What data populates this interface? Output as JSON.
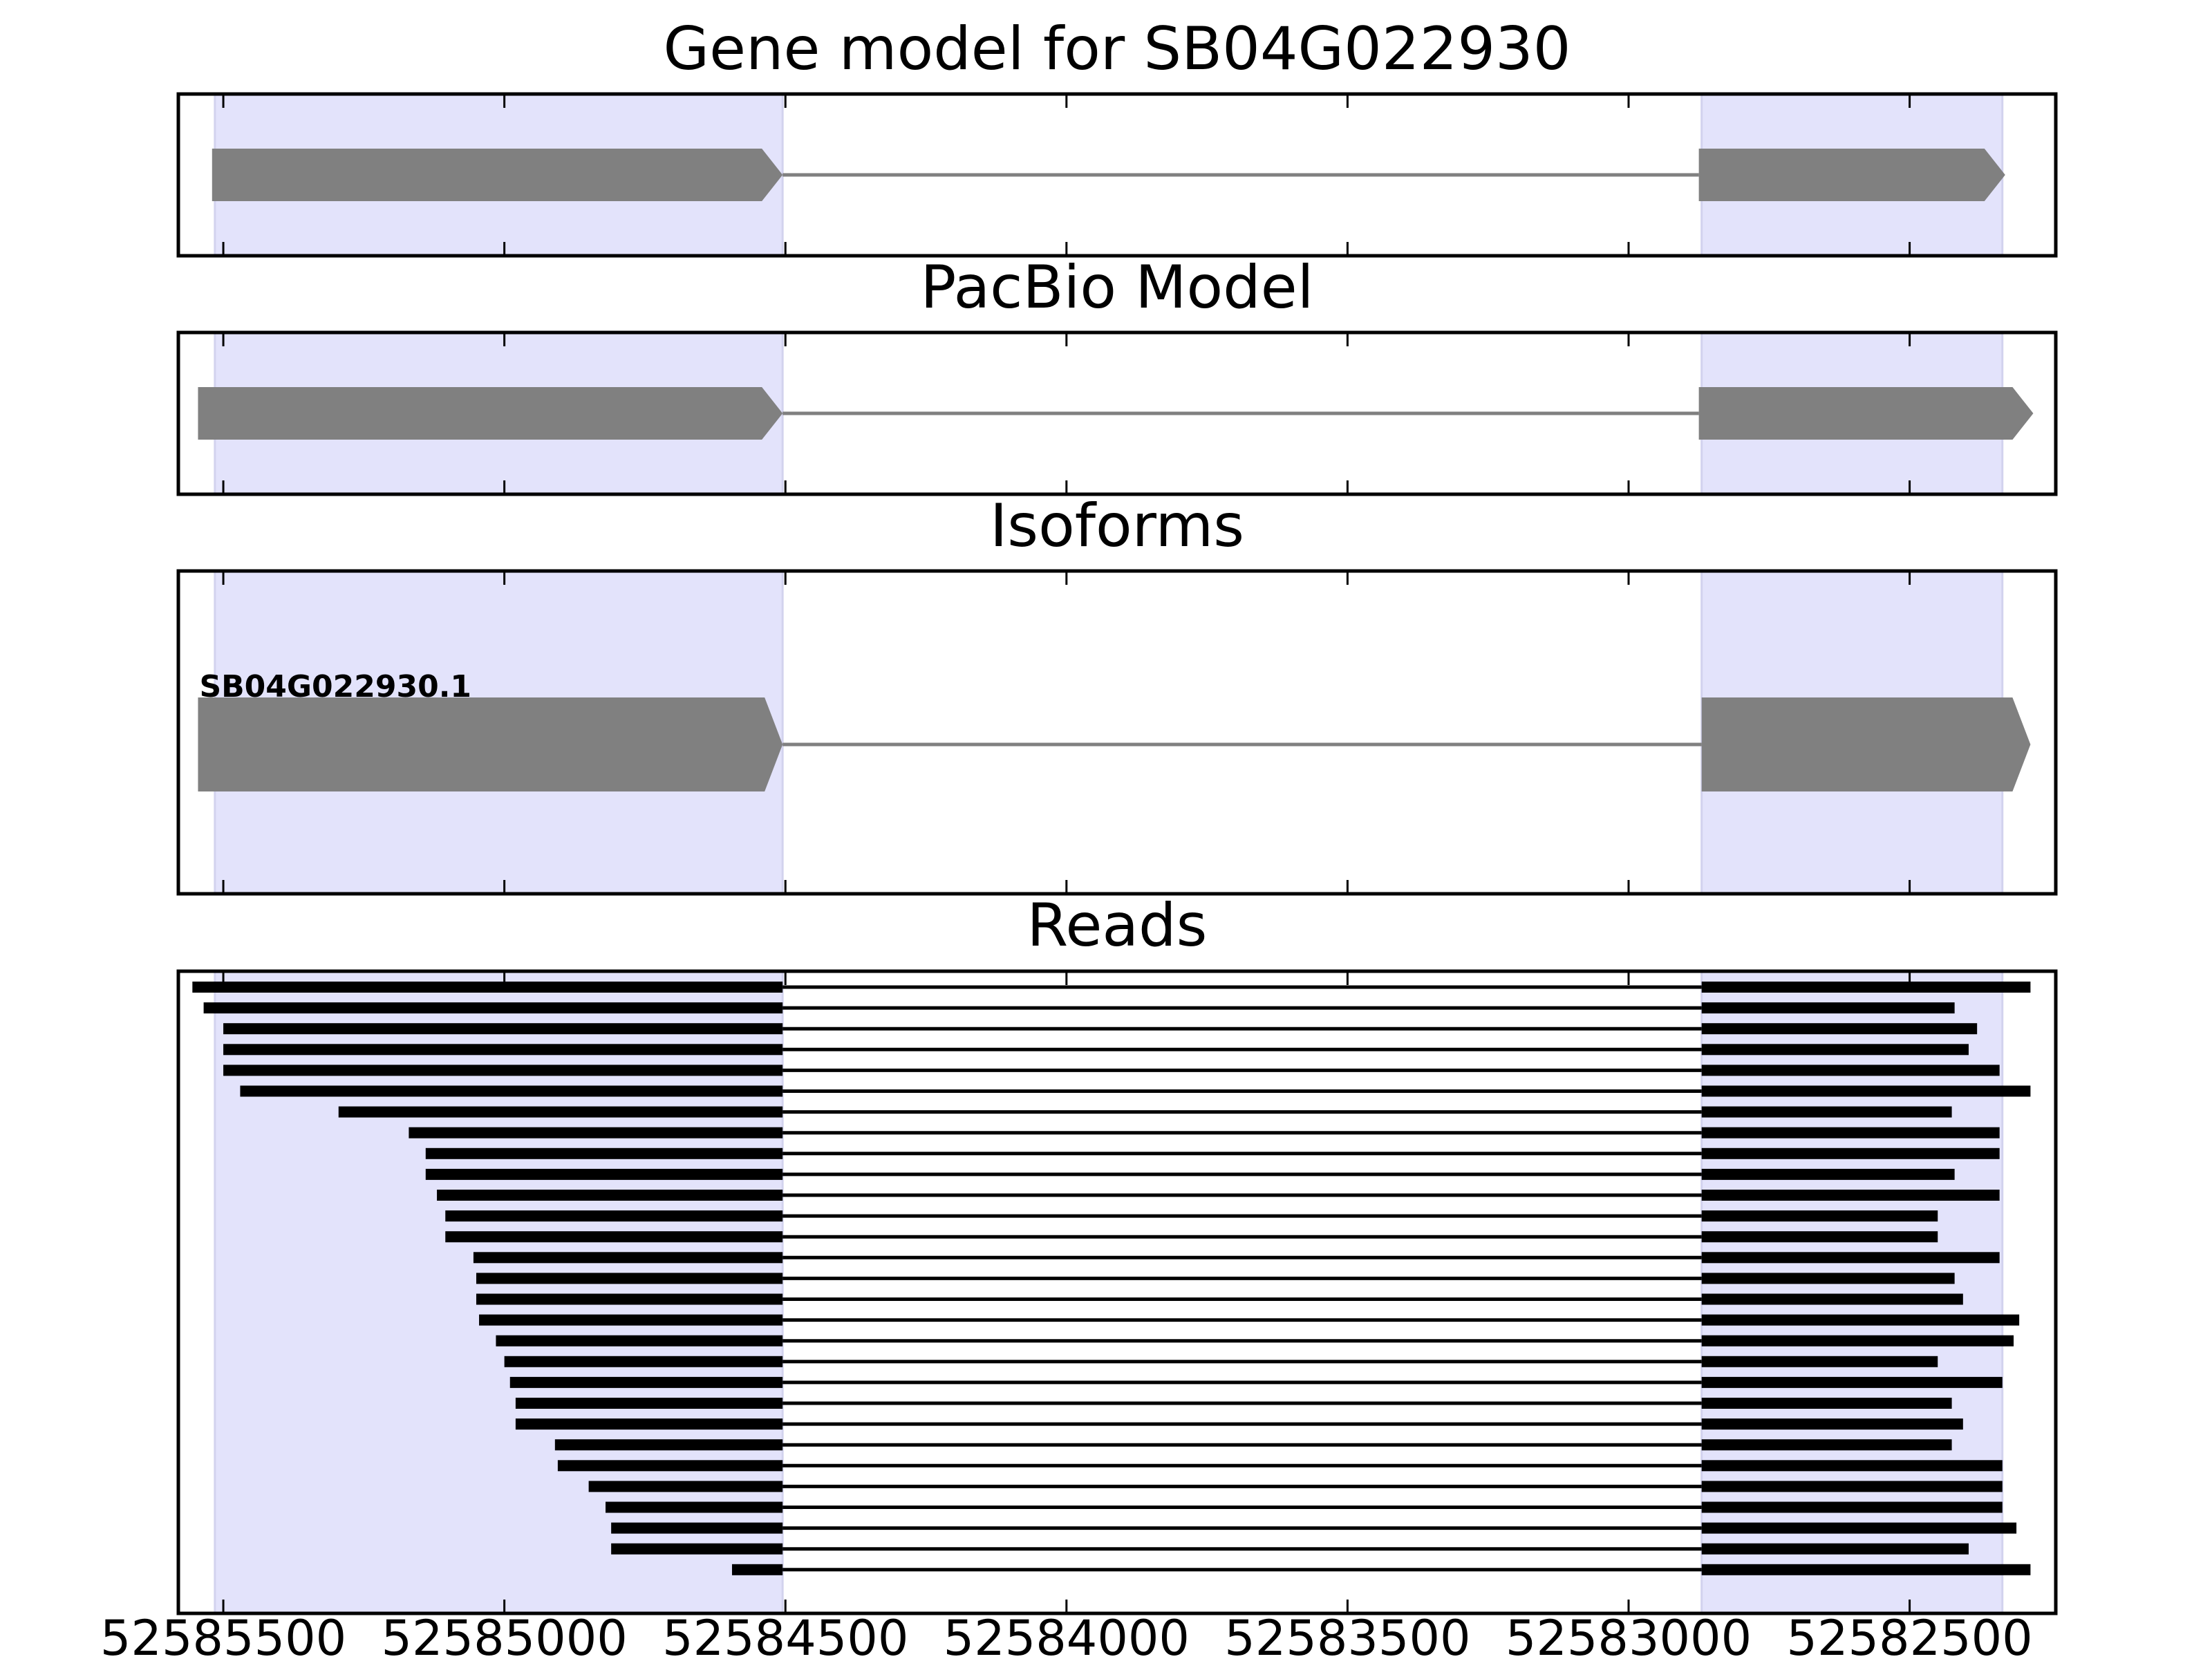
{
  "chart_data": {
    "type": "gene-track",
    "strand": "reverse",
    "xlim": [
      52585580,
      52582240
    ],
    "xticks": [
      52585500,
      52585000,
      52584500,
      52584000,
      52583500,
      52583000,
      52582500
    ],
    "xtick_labels": [
      "52585500",
      "52585000",
      "52584500",
      "52584000",
      "52583500",
      "52583000",
      "52582500"
    ],
    "highlight_regions": [
      [
        52585515,
        52584505
      ],
      [
        52582870,
        52582335
      ]
    ],
    "colors": {
      "highlight": "#e3e3fb",
      "feature": "#808080",
      "read": "#000000",
      "intron": "#808080",
      "read_intron": "#000000",
      "frame": "#000000"
    },
    "panels": [
      {
        "title": "Gene model for SB04G022930",
        "exons": [
          [
            52585520,
            52584505
          ],
          [
            52582875,
            52582330
          ]
        ]
      },
      {
        "title": "PacBio Model",
        "exons": [
          [
            52585545,
            52584505
          ],
          [
            52582875,
            52582280
          ]
        ]
      },
      {
        "title": "Isoforms",
        "isoform_label": "SB04G022930.1",
        "exons": [
          [
            52585545,
            52584505
          ],
          [
            52582870,
            52582285
          ]
        ]
      },
      {
        "title": "Reads",
        "reads": [
          [
            52585555,
            52582285
          ],
          [
            52585535,
            52582420
          ],
          [
            52585500,
            52582380
          ],
          [
            52585500,
            52582395
          ],
          [
            52585500,
            52582340
          ],
          [
            52585470,
            52582285
          ],
          [
            52585295,
            52582425
          ],
          [
            52585170,
            52582340
          ],
          [
            52585140,
            52582340
          ],
          [
            52585140,
            52582420
          ],
          [
            52585120,
            52582340
          ],
          [
            52585105,
            52582450
          ],
          [
            52585105,
            52582450
          ],
          [
            52585055,
            52582340
          ],
          [
            52585050,
            52582420
          ],
          [
            52585050,
            52582405
          ],
          [
            52585045,
            52582305
          ],
          [
            52585015,
            52582315
          ],
          [
            52585000,
            52582450
          ],
          [
            52584990,
            52582335
          ],
          [
            52584980,
            52582425
          ],
          [
            52584980,
            52582405
          ],
          [
            52584910,
            52582425
          ],
          [
            52584905,
            52582335
          ],
          [
            52584850,
            52582335
          ],
          [
            52584820,
            52582335
          ],
          [
            52584810,
            52582310
          ],
          [
            52584810,
            52582395
          ],
          [
            52584595,
            52582285
          ]
        ],
        "read_intron": [
          52584505,
          52582870
        ]
      }
    ]
  }
}
